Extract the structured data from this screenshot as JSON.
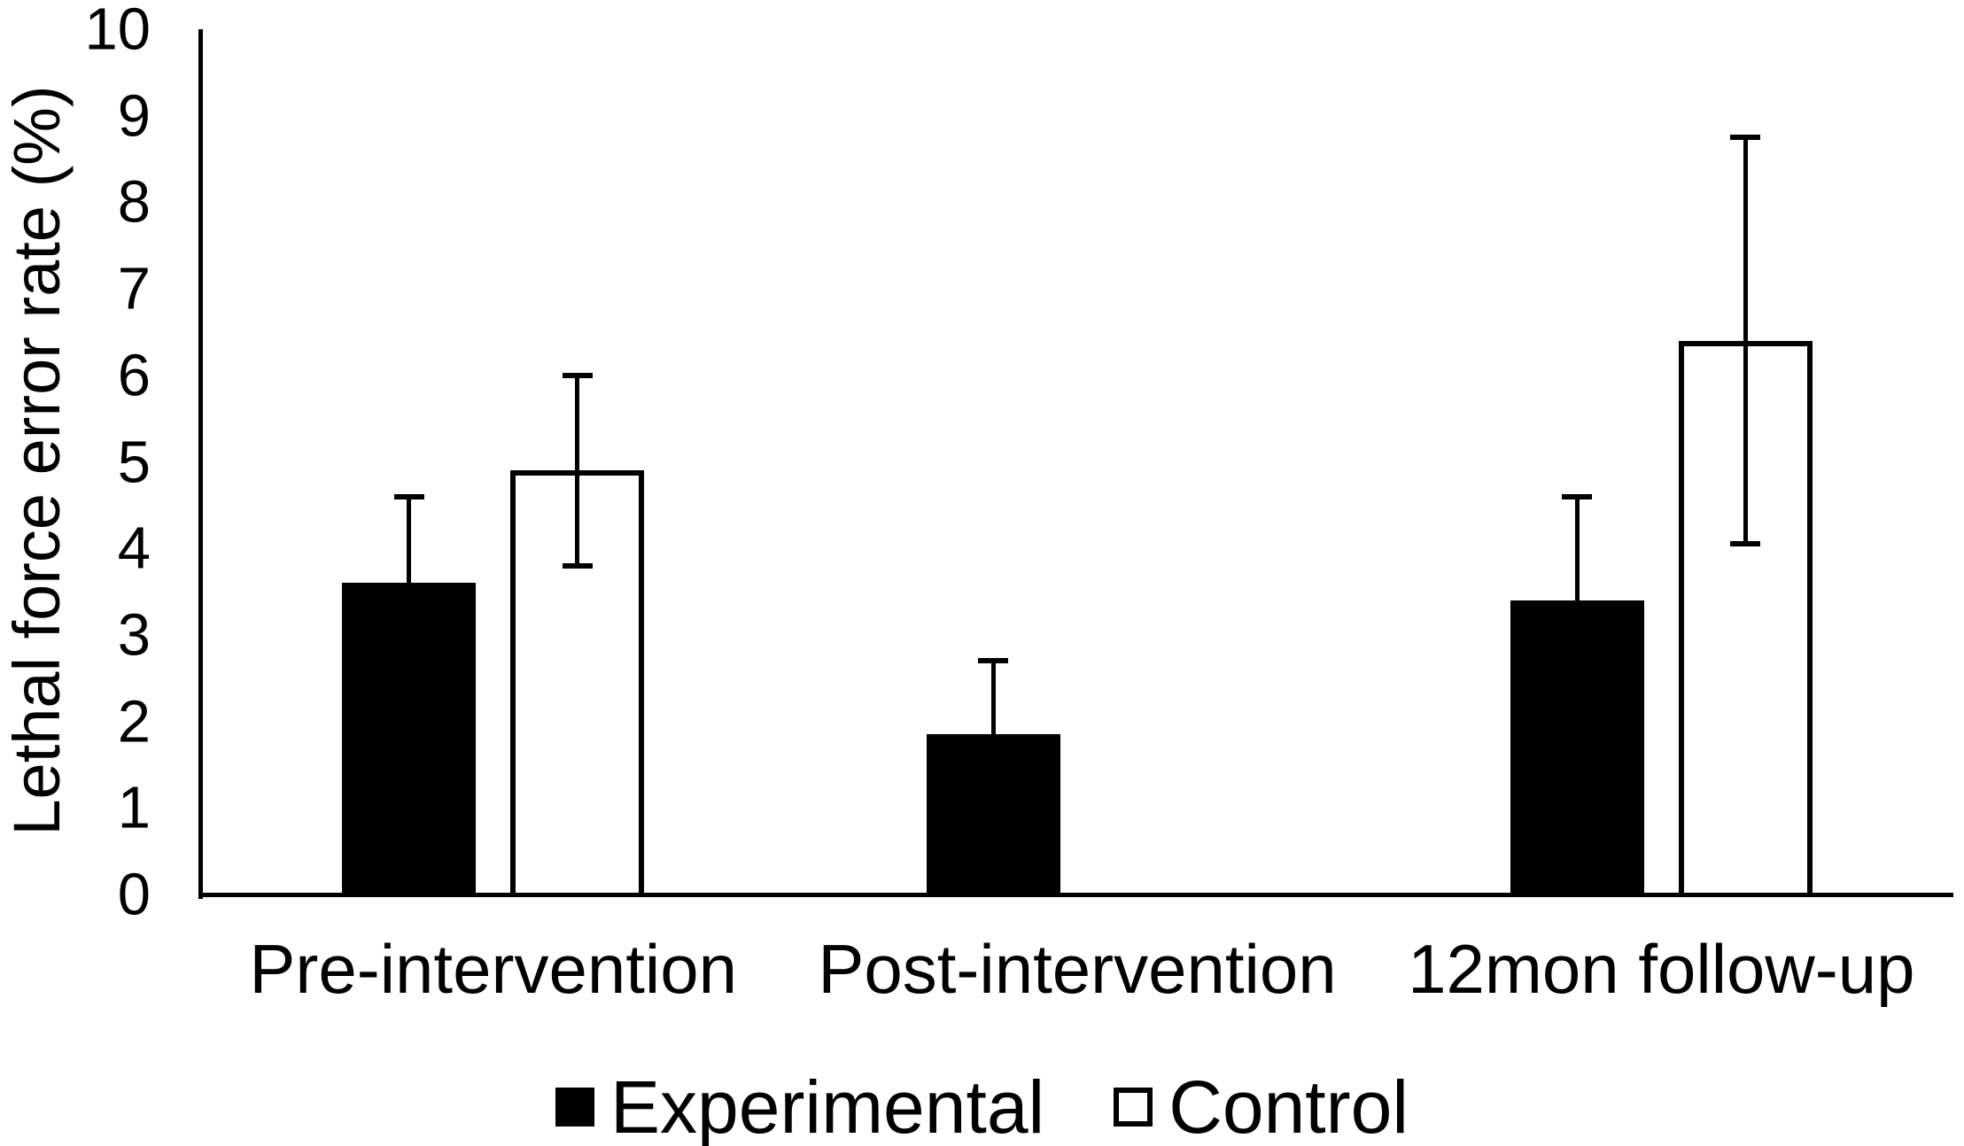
{
  "chart_data": {
    "type": "bar",
    "title": "",
    "ylabel": "Lethal force error rate (%)",
    "xlabel": "",
    "categories": [
      "Pre-intervention",
      "Post-intervention",
      "12mon follow-up"
    ],
    "series": [
      {
        "name": "Experimental",
        "fill": "#000000",
        "border": "#000000",
        "values": [
          3.6,
          1.85,
          3.4
        ],
        "errors": [
          1.0,
          0.85,
          1.2
        ]
      },
      {
        "name": "Control",
        "fill": "#ffffff",
        "border": "#000000",
        "values": [
          4.9,
          0,
          6.4
        ],
        "errors": [
          1.1,
          0,
          2.35
        ]
      }
    ],
    "ylim": [
      0,
      10
    ],
    "yticks": [
      0,
      1,
      2,
      3,
      4,
      5,
      6,
      7,
      8,
      9,
      10
    ],
    "grid": false,
    "error_bars": true,
    "legend_position": "bottom",
    "colors": {
      "axis": "#000000",
      "experimental_fill": "#000000",
      "control_fill": "#ffffff",
      "background": "#ffffff"
    }
  }
}
